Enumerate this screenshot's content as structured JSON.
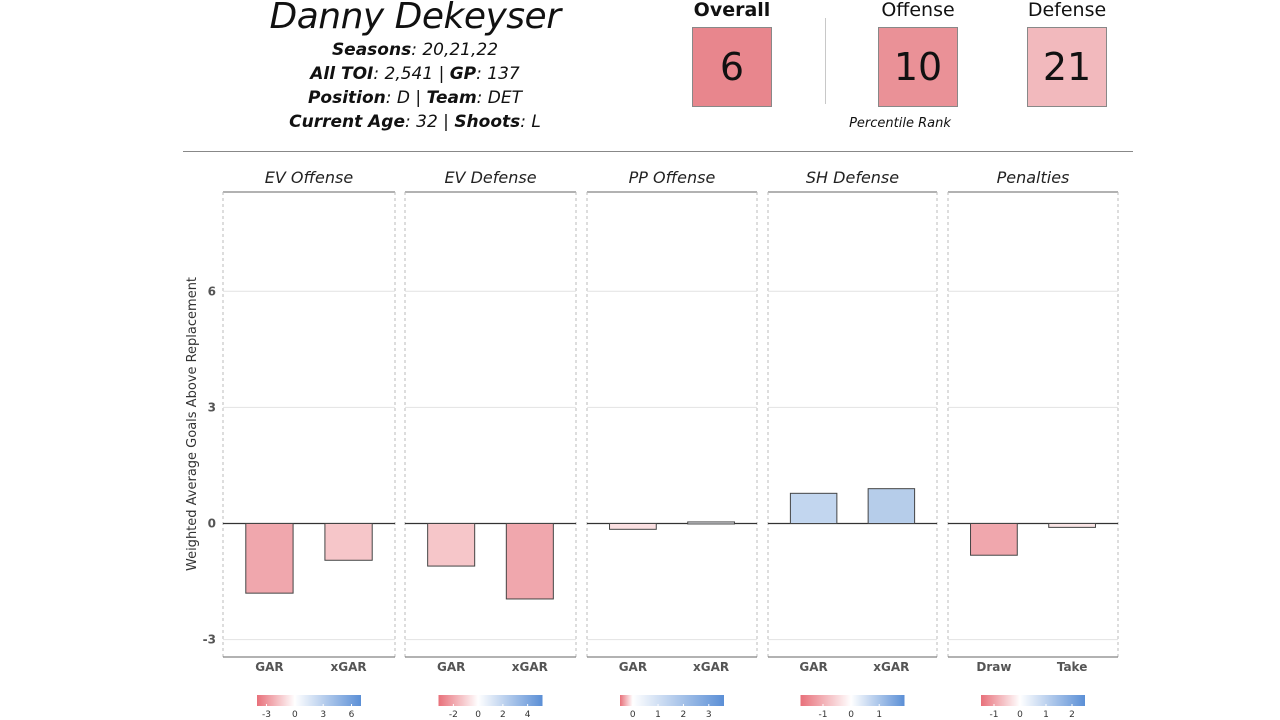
{
  "player": {
    "name": "Danny Dekeyser",
    "seasons_label": "Seasons",
    "seasons": ": 20,21,22",
    "toi_label": "All TOI",
    "toi": ": 2,541 | ",
    "gp_label": "GP",
    "gp": ": 137",
    "position_label": "Position",
    "position": ": D | ",
    "team_label": "Team",
    "team": ": DET",
    "age_label": "Current Age",
    "age": ": 32 | ",
    "shoots_label": "Shoots",
    "shoots": ": L"
  },
  "ranks": {
    "overall_label": "Overall",
    "overall": "6",
    "overall_color": "#e8868d",
    "offense_label": "Offense",
    "offense": "10",
    "offense_color": "#ea9197",
    "defense_label": "Defense",
    "defense": "21",
    "defense_color": "#f2b9bd",
    "caption": "Percentile Rank"
  },
  "chart_data": {
    "type": "bar",
    "ylabel": "Weighted Average Goals Above Replacement",
    "ylim": [
      -3.3,
      8.6
    ],
    "yticks": [
      -3,
      0,
      3,
      6
    ],
    "grid": true,
    "panels": [
      {
        "title": "EV Offense",
        "categories": [
          "GAR",
          "xGAR"
        ],
        "values": [
          -1.8,
          -0.95
        ],
        "colors": [
          "#f0a7ad",
          "#f6c6c9"
        ],
        "legend_ticks": [
          "-3",
          "0",
          "3",
          "6"
        ],
        "legend_min": -4,
        "legend_max": 7
      },
      {
        "title": "EV Defense",
        "categories": [
          "GAR",
          "xGAR"
        ],
        "values": [
          -1.1,
          -1.95
        ],
        "colors": [
          "#f6c6c9",
          "#f0a7ad"
        ],
        "legend_ticks": [
          "-2",
          "0",
          "2",
          "4"
        ],
        "legend_min": -3.2,
        "legend_max": 5.2
      },
      {
        "title": "PP Offense",
        "categories": [
          "GAR",
          "xGAR"
        ],
        "values": [
          -0.15,
          0.04
        ],
        "colors": [
          "#fbe0e2",
          "#f3f5f9"
        ],
        "legend_ticks": [
          "0",
          "1",
          "2",
          "3"
        ],
        "legend_min": -0.5,
        "legend_max": 3.6
      },
      {
        "title": "SH Defense",
        "categories": [
          "GAR",
          "xGAR"
        ],
        "values": [
          0.78,
          0.9
        ],
        "colors": [
          "#c2d6ef",
          "#b6cdea"
        ],
        "legend_ticks": [
          "-1",
          "0",
          "1"
        ],
        "legend_min": -1.8,
        "legend_max": 1.9
      },
      {
        "title": "Penalties",
        "categories": [
          "Draw",
          "Take"
        ],
        "values": [
          -0.82,
          -0.1
        ],
        "colors": [
          "#f0a7ad",
          "#fae5e6"
        ],
        "legend_ticks": [
          "-1",
          "0",
          "1",
          "2"
        ],
        "legend_min": -1.5,
        "legend_max": 2.5
      }
    ]
  }
}
